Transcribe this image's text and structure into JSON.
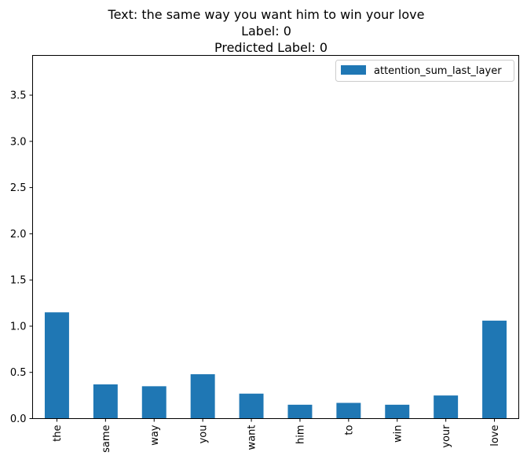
{
  "chart_data": {
    "type": "bar",
    "title_lines": [
      "Text: the same way you want him to win your love",
      "Label: 0",
      "Predicted Label: 0"
    ],
    "categories": [
      "the",
      "same",
      "way",
      "you",
      "want",
      "him",
      "to",
      "win",
      "your",
      "love"
    ],
    "series": [
      {
        "name": "attention_sum_last_layer",
        "color": "#1f77b4",
        "values": [
          1.15,
          0.37,
          0.35,
          0.48,
          0.27,
          0.15,
          0.17,
          0.15,
          0.25,
          1.06
        ]
      }
    ],
    "xlabel": "",
    "ylabel": "",
    "ylim": [
      0,
      3.93
    ],
    "yticks": [
      "0.0",
      "0.5",
      "1.0",
      "1.5",
      "2.0",
      "2.5",
      "3.0",
      "3.5"
    ],
    "grid": false,
    "legend_position": "upper right"
  }
}
